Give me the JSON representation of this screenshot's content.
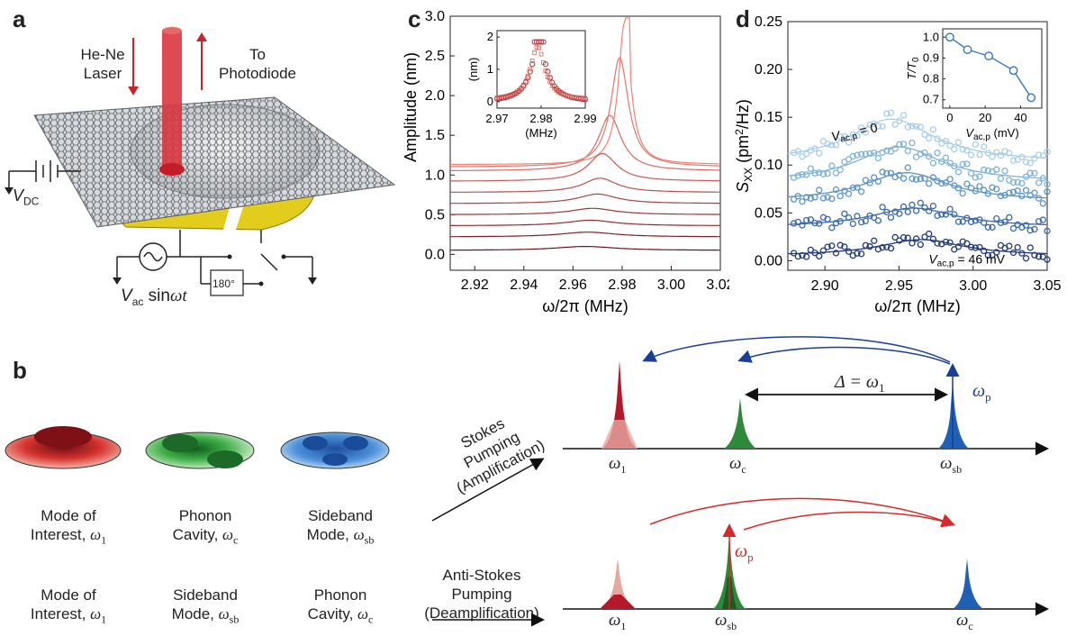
{
  "panel_a": {
    "label": "a",
    "laser_line1": "He-Ne",
    "laser_line2": "Laser",
    "photodiode_line1": "To",
    "photodiode_line2": "Photodiode",
    "vdc": "V",
    "vdc_sub": "DC",
    "vac": "V",
    "vac_sub": "ac",
    "vac_tail": " sin",
    "omega_t": "ωt",
    "phase_box": "180°"
  },
  "panel_b": {
    "label": "b",
    "modes_row1": [
      {
        "line1": "Mode of",
        "line2": "Interest, ",
        "sym": "ω",
        "sub": "1"
      },
      {
        "line1": "Phonon",
        "line2": "Cavity, ",
        "sym": "ω",
        "sub": "c"
      },
      {
        "line1": "Sideband",
        "line2": "Mode, ",
        "sym": "ω",
        "sub": "sb"
      }
    ],
    "modes_row2": [
      {
        "line1": "Mode of",
        "line2": "Interest, ",
        "sym": "ω",
        "sub": "1"
      },
      {
        "line1": "Sideband",
        "line2": "Mode, ",
        "sym": "ω",
        "sub": "sb"
      },
      {
        "line1": "Phonon",
        "line2": "Cavity, ",
        "sym": "ω",
        "sub": "c"
      }
    ],
    "stokes_line1": "Stokes",
    "stokes_line2": "Pumping",
    "stokes_line3": "(Amplification)",
    "antistokes_line1": "Anti-Stokes",
    "antistokes_line2": "Pumping",
    "antistokes_line3": "(Deamplification)",
    "top_axis": [
      {
        "sym": "ω",
        "sub": "1"
      },
      {
        "sym": "ω",
        "sub": "c"
      },
      {
        "sym": "ω",
        "sub": "sb"
      }
    ],
    "bottom_axis": [
      {
        "sym": "ω",
        "sub": "1"
      },
      {
        "sym": "ω",
        "sub": "sb"
      },
      {
        "sym": "ω",
        "sub": "c"
      }
    ],
    "delta_label": "Δ = ω",
    "delta_sub": "1",
    "pump_sym": "ω",
    "pump_sub": "p",
    "colors": {
      "red": "#b5182b",
      "green": "#2e8a3a",
      "blue": "#1f5fb4",
      "navy": "#1b3f95"
    }
  },
  "chart_data": [
    {
      "panel": "c",
      "type": "line",
      "xlabel": "ω/2π (MHz)",
      "ylabel": "Amplitude (nm)",
      "xlim": [
        2.91,
        3.02
      ],
      "ylim": [
        -0.2,
        3.0
      ],
      "xticks": [
        "2.92",
        "2.94",
        "2.96",
        "2.98",
        "3.00",
        "3.02"
      ],
      "yticks": [
        "0.0",
        "0.5",
        "1.0",
        "1.5",
        "2.0",
        "2.5",
        "3.0"
      ],
      "offsets": [
        0.05,
        0.22,
        0.36,
        0.5,
        0.64,
        0.78,
        0.92,
        1.05,
        1.1,
        1.13
      ],
      "peak_heights": [
        0.05,
        0.06,
        0.07,
        0.08,
        0.12,
        0.18,
        0.35,
        0.7,
        1.38,
        1.8
      ],
      "peak_centers": [
        2.965,
        2.966,
        2.967,
        2.968,
        2.97,
        2.971,
        2.972,
        2.975,
        2.979,
        2.981
      ],
      "inset": {
        "xlabel": "(MHz)",
        "ylabel": "(nm)",
        "xlim": [
          2.97,
          2.99
        ],
        "ylim": [
          -0.2,
          2.2
        ],
        "xticks": [
          "2.97",
          "2.98",
          "2.99"
        ],
        "yticks": [
          "0",
          "1",
          "2"
        ]
      }
    },
    {
      "panel": "d",
      "type": "scatter",
      "ylabel_main": "S",
      "ylabel_sub": "XX",
      "ylabel_tail": " (pm",
      "ylabel_sup": "2",
      "ylabel_end": "/Hz)",
      "xlabel": "ω/2π (MHz)",
      "xlim": [
        2.875,
        3.05
      ],
      "ylim": [
        -0.01,
        0.25
      ],
      "xticks": [
        "2.90",
        "2.95",
        "3.00",
        "3.05"
      ],
      "yticks": [
        "0.00",
        "0.05",
        "0.10",
        "0.15",
        "0.20",
        "0.25"
      ],
      "series_baselines": [
        0.103,
        0.082,
        0.062,
        0.035,
        0.005
      ],
      "series_peaks": [
        0.045,
        0.037,
        0.03,
        0.02,
        0.017
      ],
      "series_centers": [
        2.945,
        2.95,
        2.955,
        2.96,
        2.965
      ],
      "series_colors": [
        "#a9cfe8",
        "#7fb3d9",
        "#5b94c6",
        "#3a68a8",
        "#223a78"
      ],
      "annot_top_main": "V",
      "annot_top_sub": "ac,p",
      "annot_top_tail": " = 0",
      "annot_bottom_main": "V",
      "annot_bottom_sub": "ac,p",
      "annot_bottom_tail": " = 46 mV",
      "inset": {
        "ylabel": "T/T",
        "ylabel_sub": "0",
        "xlabel": "V",
        "xlabel_sub": "ac,p",
        "xlabel_tail": " (mV)",
        "x": [
          0,
          10,
          22,
          36,
          46
        ],
        "y": [
          1.0,
          0.94,
          0.91,
          0.84,
          0.71
        ],
        "xlim": [
          -4,
          52
        ],
        "ylim": [
          0.66,
          1.04
        ],
        "xticks": [
          "0",
          "20",
          "40"
        ],
        "yticks": [
          "0.7",
          "0.8",
          "0.9",
          "1.0"
        ]
      }
    }
  ],
  "panel_c_label": "c",
  "panel_d_label": "d"
}
